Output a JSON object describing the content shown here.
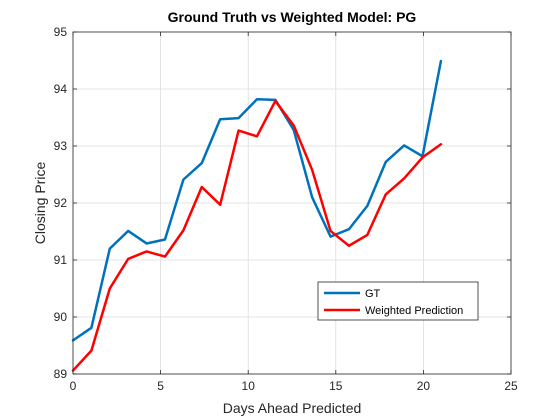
{
  "chart_data": {
    "type": "line",
    "title": "Ground Truth vs Weighted Model: PG",
    "xlabel": "Days Ahead Predicted",
    "ylabel": "Closing Price",
    "xlim": [
      0,
      25
    ],
    "ylim": [
      89,
      95
    ],
    "xticks": [
      0,
      5,
      10,
      15,
      20,
      25
    ],
    "yticks": [
      89,
      90,
      91,
      92,
      93,
      94,
      95
    ],
    "grid": true,
    "legend_position": "bottom-right",
    "series": [
      {
        "name": "GT",
        "color": "#0072BD",
        "x": [
          0,
          1.05,
          2.1,
          3.15,
          4.2,
          5.25,
          6.3,
          7.35,
          8.4,
          9.45,
          10.5,
          11.55,
          12.6,
          13.65,
          14.7,
          15.75,
          16.8,
          17.85,
          18.9,
          19.95,
          21
        ],
        "y": [
          89.59,
          89.81,
          91.2,
          91.51,
          91.29,
          91.36,
          92.41,
          92.7,
          93.47,
          93.49,
          93.82,
          93.81,
          93.28,
          92.1,
          91.41,
          91.54,
          91.95,
          92.72,
          93.01,
          92.82,
          94.49
        ]
      },
      {
        "name": "Weighted Prediction",
        "color": "#FF0000",
        "x": [
          0,
          1.05,
          2.1,
          3.15,
          4.2,
          5.25,
          6.3,
          7.35,
          8.4,
          9.45,
          10.5,
          11.55,
          12.6,
          13.65,
          14.7,
          15.75,
          16.8,
          17.85,
          18.9,
          19.95,
          21
        ],
        "y": [
          89.06,
          89.41,
          90.5,
          91.02,
          91.15,
          91.06,
          91.52,
          92.28,
          91.97,
          93.27,
          93.17,
          93.79,
          93.36,
          92.58,
          91.51,
          91.25,
          91.44,
          92.15,
          92.43,
          92.8,
          93.03
        ]
      }
    ]
  }
}
